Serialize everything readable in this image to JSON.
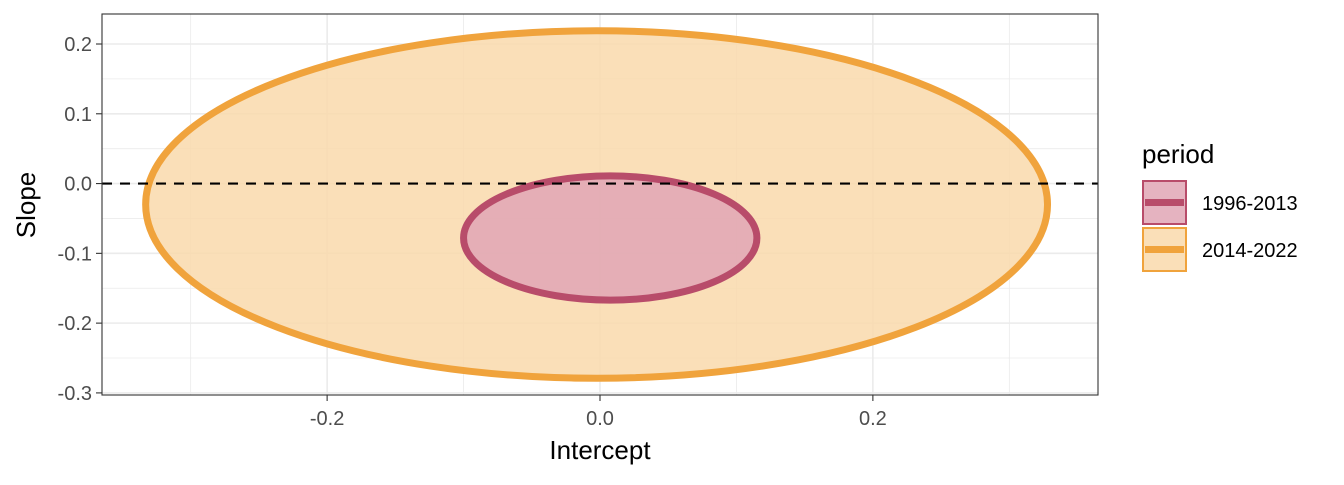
{
  "chart_data": {
    "type": "ellipse",
    "title": "",
    "xlabel": "Intercept",
    "ylabel": "Slope",
    "xlim": [
      -0.365,
      0.365
    ],
    "ylim": [
      -0.303,
      0.243
    ],
    "x_ticks": [
      -0.2,
      0.0,
      0.2
    ],
    "x_tick_labels": [
      "-0.2",
      "0.0",
      "0.2"
    ],
    "y_ticks": [
      0.2,
      0.1,
      0.0,
      -0.1,
      -0.2,
      -0.3
    ],
    "y_tick_labels": [
      "0.2",
      "0.1",
      "0.0",
      "-0.1",
      "-0.2",
      "-0.3"
    ],
    "grid": true,
    "reference_line": {
      "y": 0,
      "style": "dashed",
      "color": "#000000"
    },
    "legend": {
      "title": "period",
      "position": "right"
    },
    "series": [
      {
        "name": "1996-2013",
        "color": "#B84C6A",
        "fill": "#E0A6B5",
        "center": [
          0.011,
          -0.078
        ],
        "x_extent": [
          -0.1,
          0.115
        ],
        "y_extent": [
          -0.167,
          0.011
        ]
      },
      {
        "name": "2014-2022",
        "color": "#F0A33C",
        "fill": "#F9D9AB",
        "center": [
          -0.003,
          -0.03
        ],
        "x_extent": [
          -0.333,
          0.328
        ],
        "y_extent": [
          -0.279,
          0.219
        ]
      }
    ]
  }
}
